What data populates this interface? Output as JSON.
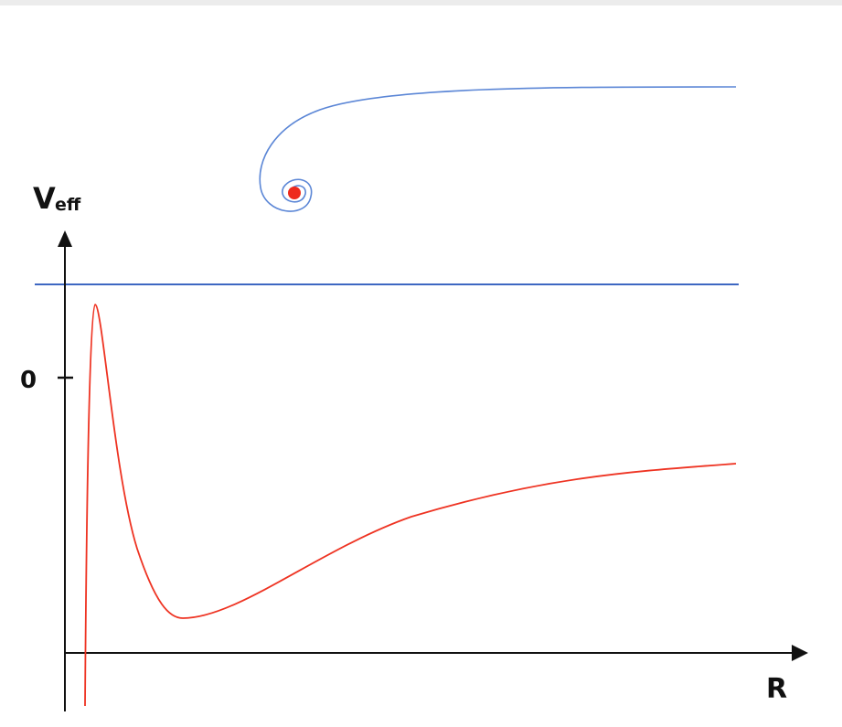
{
  "axes": {
    "y_label": "V",
    "y_label_subscript": "eff",
    "y_tick_label": "0",
    "x_label": "R"
  }
}
